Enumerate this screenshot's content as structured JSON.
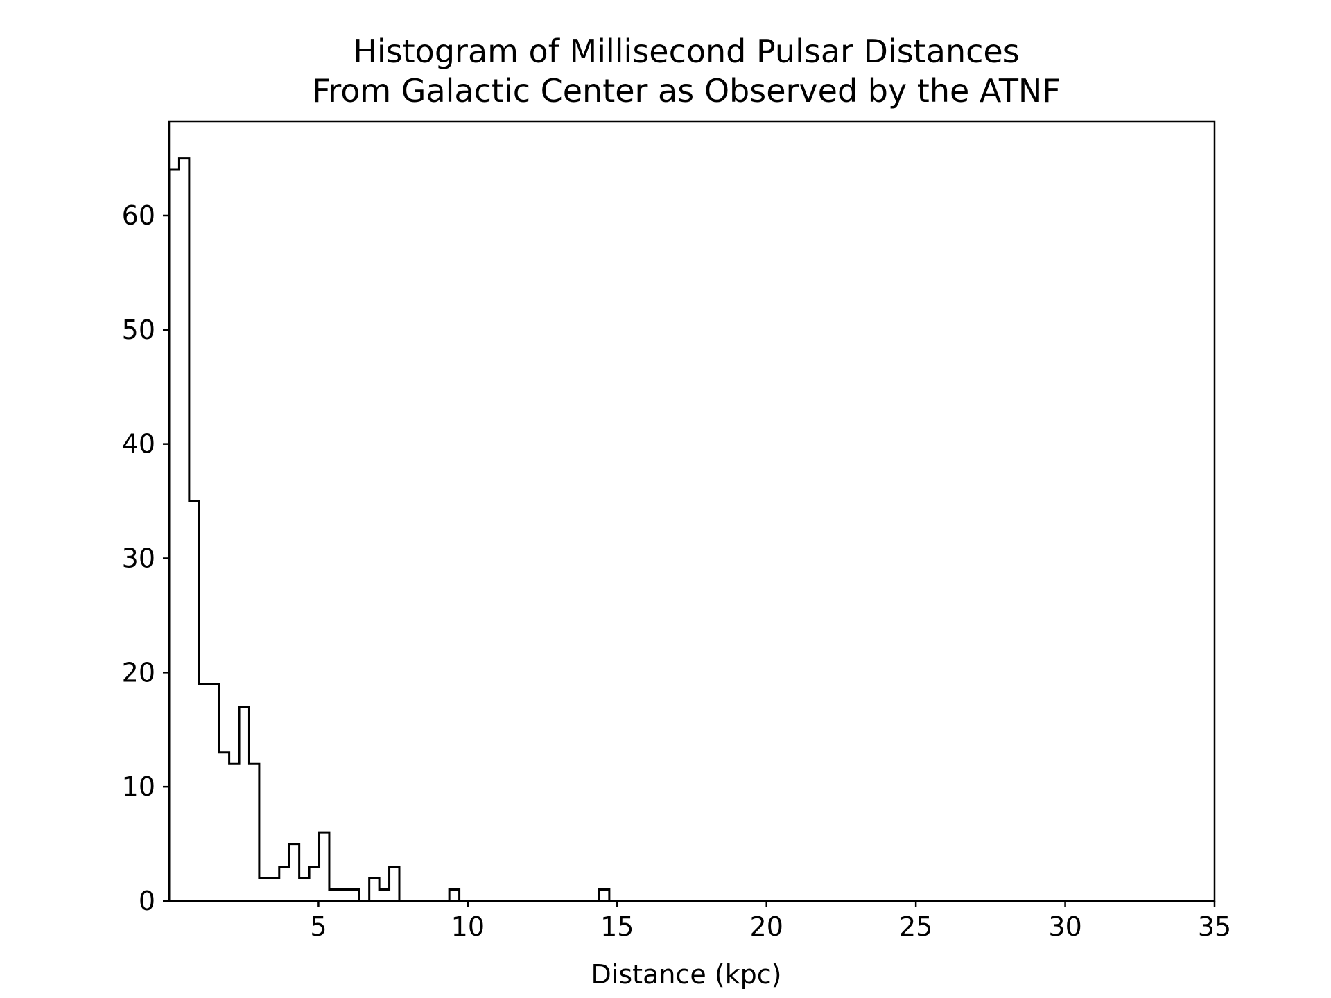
{
  "chart_data": {
    "type": "histogram",
    "title_lines": [
      "Histogram of Millisecond Pulsar Distances",
      "From Galactic Center as Observed by the ATNF"
    ],
    "xlabel": "Distance (kpc)",
    "ylabel": "",
    "xlim": [
      0,
      35
    ],
    "ylim": [
      0,
      68.25
    ],
    "xticks": [
      5,
      10,
      15,
      20,
      25,
      30,
      35
    ],
    "yticks": [
      0,
      10,
      20,
      30,
      40,
      50,
      60
    ],
    "grid": false,
    "legend": "none",
    "histtype": "step",
    "bin_edges": [
      0,
      0.335,
      0.67,
      1.005,
      1.34,
      1.675,
      2.01,
      2.345,
      2.68,
      3.015,
      3.35,
      3.685,
      4.02,
      4.355,
      4.69,
      5.025,
      5.36,
      5.695,
      6.03,
      6.365,
      6.7,
      7.035,
      7.37,
      7.705,
      8.04,
      8.375,
      8.71,
      9.045,
      9.38,
      9.715,
      10.05,
      14.4,
      14.735,
      15.07,
      35
    ],
    "counts": [
      64,
      65,
      35,
      19,
      19,
      13,
      12,
      17,
      12,
      2,
      2,
      3,
      5,
      2,
      3,
      6,
      1,
      1,
      1,
      0,
      2,
      1,
      3,
      0,
      0,
      0,
      0,
      0,
      1,
      0,
      0,
      1,
      0,
      0
    ],
    "colors": {
      "line": "#000000",
      "background": "#ffffff"
    }
  }
}
